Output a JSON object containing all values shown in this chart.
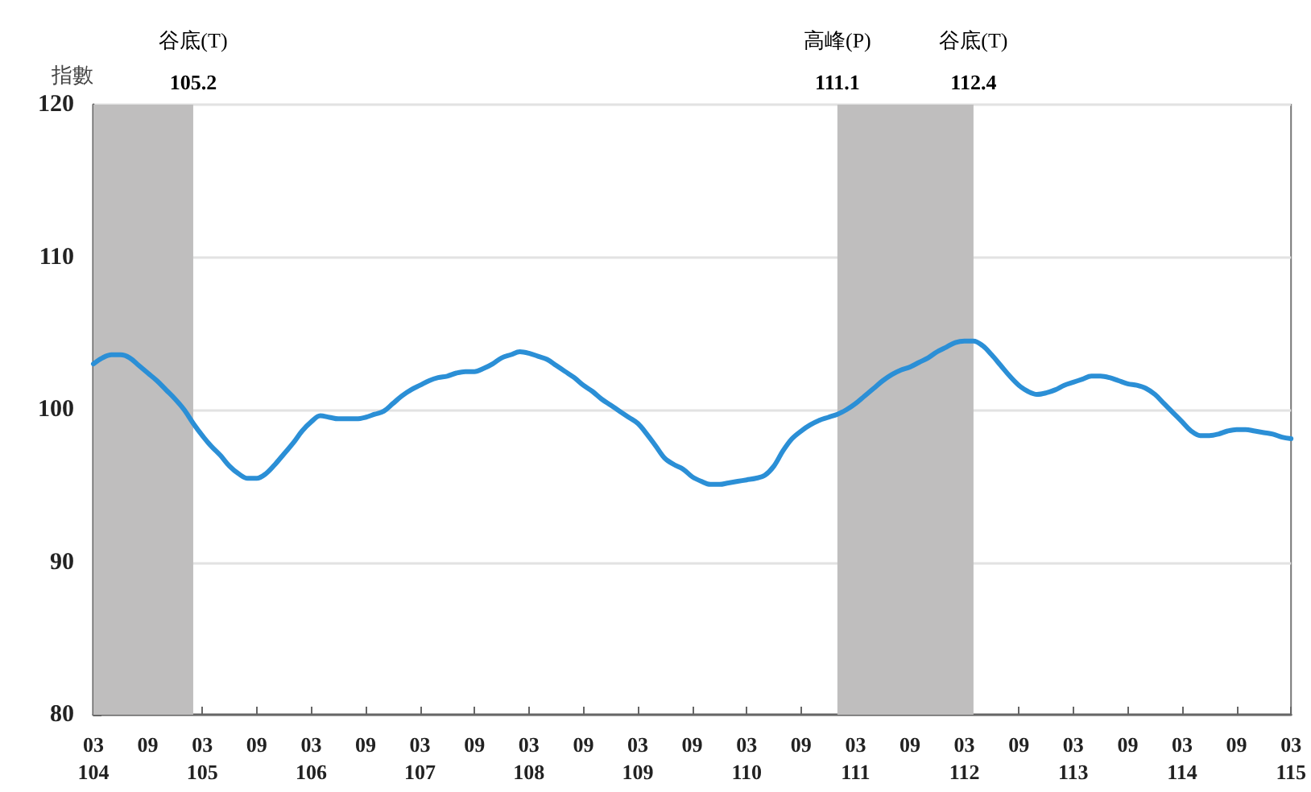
{
  "chart_data": {
    "type": "line",
    "ylabel": "指數",
    "categories": [
      "03\n104",
      null,
      null,
      null,
      null,
      null,
      "09",
      null,
      null,
      null,
      null,
      null,
      "03\n105",
      null,
      null,
      null,
      null,
      null,
      "09",
      null,
      null,
      null,
      null,
      null,
      "03\n106",
      null,
      null,
      null,
      null,
      null,
      "09",
      null,
      null,
      null,
      null,
      null,
      "03\n107",
      null,
      null,
      null,
      null,
      null,
      "09",
      null,
      null,
      null,
      null,
      null,
      "03\n108",
      null,
      null,
      null,
      null,
      null,
      "09",
      null,
      null,
      null,
      null,
      null,
      "03\n109",
      null,
      null,
      null,
      null,
      null,
      "09",
      null,
      null,
      null,
      null,
      null,
      "03\n110",
      null,
      null,
      null,
      null,
      null,
      "09",
      null,
      null,
      null,
      null,
      null,
      "03\n111",
      null,
      null,
      null,
      null,
      null,
      "09",
      null,
      null,
      null,
      null,
      null,
      "03\n112",
      null,
      null,
      null,
      null,
      null,
      "09",
      null,
      null,
      null,
      null,
      null,
      "03\n113",
      null,
      null,
      null,
      null,
      null,
      "09",
      null,
      null,
      null,
      null,
      null,
      "03\n114",
      null,
      null,
      null,
      null,
      null,
      "09",
      null,
      null,
      null,
      null,
      null,
      "03\n115"
    ],
    "series": [
      {
        "color": "#2b8fd6",
        "values": [
          103.0,
          103.4,
          103.6,
          103.6,
          103.4,
          102.9,
          102.4,
          101.9,
          101.3,
          100.7,
          100.0,
          99.1,
          98.3,
          97.6,
          97.0,
          96.3,
          95.8,
          95.5,
          95.5,
          95.8,
          96.4,
          97.1,
          97.8,
          98.6,
          99.2,
          99.6,
          99.5,
          99.4,
          99.4,
          99.4,
          99.5,
          99.7,
          99.9,
          100.4,
          100.9,
          101.3,
          101.6,
          101.9,
          102.1,
          102.2,
          102.4,
          102.5,
          102.5,
          102.7,
          103.0,
          103.4,
          103.6,
          103.8,
          103.7,
          103.5,
          103.3,
          102.9,
          102.5,
          102.1,
          101.6,
          101.2,
          100.7,
          100.3,
          99.9,
          99.5,
          99.1,
          98.4,
          97.6,
          96.8,
          96.4,
          96.1,
          95.6,
          95.3,
          95.1,
          95.1,
          95.2,
          95.3,
          95.4,
          95.5,
          95.7,
          96.3,
          97.3,
          98.1,
          98.6,
          99.0,
          99.3,
          99.5,
          99.7,
          100.0,
          100.4,
          100.9,
          101.4,
          101.9,
          102.3,
          102.6,
          102.8,
          103.1,
          103.4,
          103.8,
          104.1,
          104.4,
          104.5,
          104.5,
          104.2,
          103.6,
          102.9,
          102.2,
          101.6,
          101.2,
          101.0,
          101.1,
          101.3,
          101.6,
          101.8,
          102.0,
          102.2,
          102.2,
          102.1,
          101.9,
          101.7,
          101.6,
          101.4,
          101.0,
          100.4,
          99.8,
          99.2,
          98.6,
          98.3,
          98.3,
          98.4,
          98.6,
          98.7,
          98.7,
          98.6,
          98.5,
          98.4,
          98.2,
          98.1
        ]
      }
    ],
    "ylim": [
      80,
      120
    ],
    "yticks": [
      80,
      90,
      100,
      110,
      120
    ],
    "annotations": [
      "谷底(T)\n105.2",
      "高峰(P)\n111.1",
      "谷底(T)\n112.4"
    ],
    "grid": "y",
    "marker": "none",
    "line_style": "solid"
  }
}
